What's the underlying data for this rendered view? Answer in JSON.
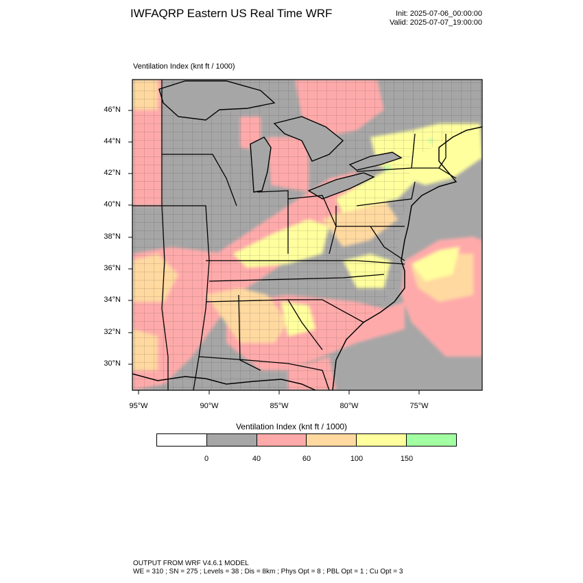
{
  "header": {
    "title": "IWFAQRP Eastern US Real Time WRF",
    "init": "Init: 2025-07-06_00:00:00",
    "valid": "Valid: 2025-07-07_19:00:00"
  },
  "plot": {
    "field_label": "Ventilation Index   (knt ft / 1000)",
    "lat_labels": [
      "46°N",
      "44°N",
      "42°N",
      "40°N",
      "38°N",
      "36°N",
      "34°N",
      "32°N",
      "30°N"
    ],
    "lon_labels": [
      "95°W",
      "90°W",
      "85°W",
      "80°W",
      "75°W"
    ]
  },
  "colorbar": {
    "title": "Ventilation Index  (knt ft / 1000)",
    "colors": [
      "#ffffff",
      "#a6a6a6",
      "#ffaaaa",
      "#ffd9a0",
      "#ffff9e",
      "#a2ffa2"
    ],
    "ticks": [
      "0",
      "40",
      "60",
      "100",
      "150"
    ]
  },
  "footer": {
    "line1": "OUTPUT FROM WRF V4.6.1 MODEL",
    "line2": "WE = 310 ; SN = 275 ; Levels = 38 ; Dis = 8km ; Phys Opt = 8 ; PBL Opt = 1 ; Cu Opt = 3"
  }
}
